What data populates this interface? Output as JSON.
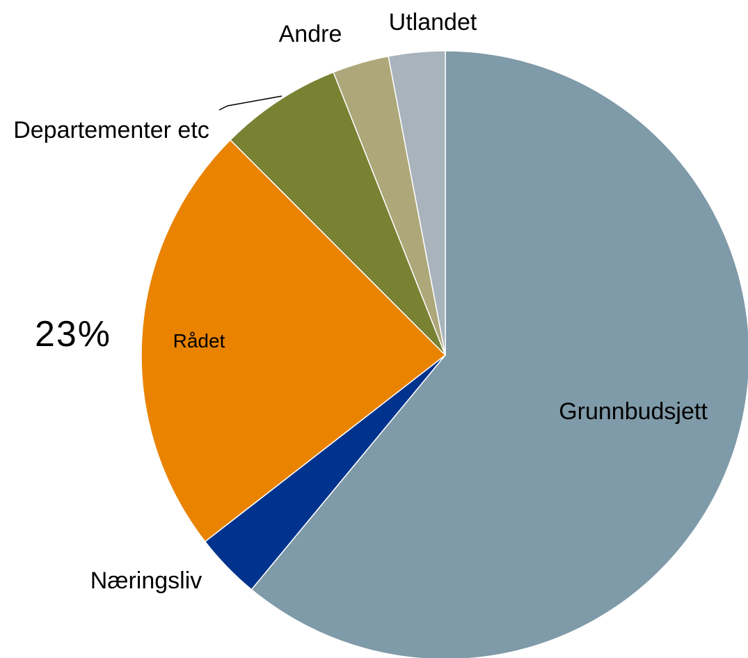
{
  "chart_data": {
    "type": "pie",
    "categories": [
      "Grunnbudsjett",
      "Næringsliv",
      "Rådet",
      "Departementer etc",
      "Andre",
      "Utlandet"
    ],
    "values": [
      61,
      3.5,
      23,
      6.5,
      3,
      3
    ],
    "value_labels": [
      null,
      null,
      "23%",
      null,
      null,
      null
    ],
    "colors": [
      "#7f9aa8",
      "#00338d",
      "#e98300",
      "#788232",
      "#ada77a",
      "#a8b3bc"
    ]
  }
}
